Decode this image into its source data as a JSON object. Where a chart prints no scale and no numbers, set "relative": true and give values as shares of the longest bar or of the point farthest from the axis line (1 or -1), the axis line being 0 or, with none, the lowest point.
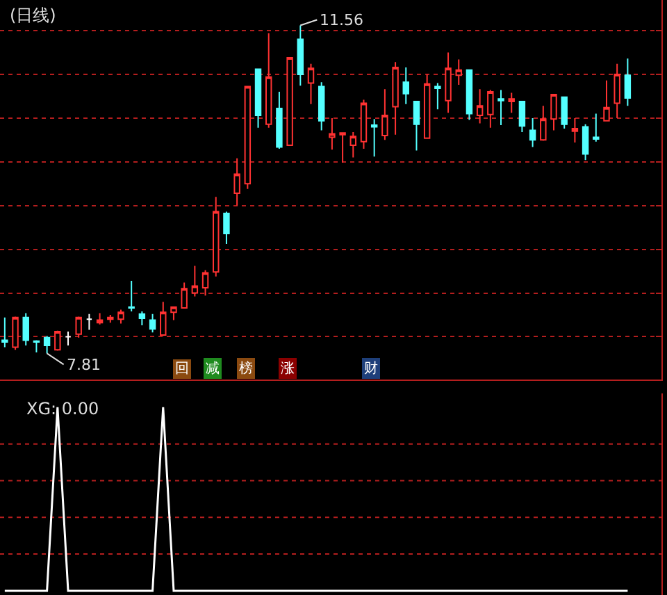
{
  "chart_data": [
    {
      "type": "candlestick",
      "title": "(日线)",
      "categories": [
        null,
        null,
        null,
        null,
        null,
        null,
        null,
        null,
        null,
        null,
        null,
        null,
        null,
        null,
        null,
        null,
        null,
        null,
        null,
        null,
        null,
        null,
        null,
        null,
        null,
        null,
        null,
        null,
        null,
        null,
        null,
        null,
        null,
        null,
        null,
        null,
        null,
        null,
        null,
        null,
        null,
        null,
        null,
        null,
        null,
        null,
        null,
        null,
        null,
        null,
        null,
        null,
        null,
        null,
        null,
        null,
        null,
        null,
        null,
        null
      ],
      "ohlc": [
        [
          7.96,
          8.22,
          7.88,
          7.94
        ],
        [
          7.88,
          8.23,
          7.85,
          8.22
        ],
        [
          8.22,
          8.27,
          7.9,
          7.96
        ],
        [
          7.95,
          7.96,
          7.82,
          7.94
        ],
        [
          7.99,
          8.01,
          7.81,
          7.9
        ],
        [
          7.85,
          8.07,
          7.84,
          8.06
        ],
        [
          8.0,
          8.06,
          7.9,
          8.0
        ],
        [
          8.03,
          8.23,
          7.99,
          8.22
        ],
        [
          8.2,
          8.26,
          8.08,
          8.2
        ],
        [
          8.16,
          8.27,
          8.14,
          8.19
        ],
        [
          8.2,
          8.25,
          8.16,
          8.22
        ],
        [
          8.2,
          8.31,
          8.15,
          8.28
        ],
        [
          8.34,
          8.64,
          8.29,
          8.33
        ],
        [
          8.26,
          8.29,
          8.13,
          8.21
        ],
        [
          8.19,
          8.26,
          8.05,
          8.09
        ],
        [
          8.02,
          8.4,
          8.01,
          8.28
        ],
        [
          8.28,
          8.34,
          8.19,
          8.34
        ],
        [
          8.33,
          8.62,
          8.33,
          8.55
        ],
        [
          8.5,
          8.81,
          8.46,
          8.58
        ],
        [
          8.56,
          8.76,
          8.47,
          8.73
        ],
        [
          8.74,
          9.6,
          8.69,
          9.43
        ],
        [
          9.41,
          9.43,
          9.06,
          9.18
        ],
        [
          9.64,
          10.04,
          9.5,
          9.86
        ],
        [
          9.75,
          10.86,
          9.69,
          10.86
        ],
        [
          11.06,
          11.06,
          10.39,
          10.53
        ],
        [
          10.43,
          11.47,
          10.39,
          10.97
        ],
        [
          10.61,
          10.8,
          10.15,
          10.17
        ],
        [
          10.19,
          11.19,
          10.19,
          11.19
        ],
        [
          11.4,
          11.56,
          10.87,
          11.0
        ],
        [
          10.9,
          11.12,
          10.66,
          11.07
        ],
        [
          10.86,
          10.91,
          10.36,
          10.47
        ],
        [
          10.28,
          10.5,
          10.14,
          10.32
        ],
        [
          10.31,
          10.33,
          9.99,
          10.33
        ],
        [
          10.19,
          10.34,
          10.05,
          10.29
        ],
        [
          10.23,
          10.71,
          10.15,
          10.67
        ],
        [
          10.42,
          10.49,
          10.06,
          10.4
        ],
        [
          10.3,
          10.83,
          10.25,
          10.53
        ],
        [
          10.63,
          11.14,
          10.31,
          11.08
        ],
        [
          10.91,
          11.08,
          10.66,
          10.78
        ],
        [
          10.69,
          10.69,
          10.13,
          10.43
        ],
        [
          10.27,
          11.0,
          10.27,
          10.89
        ],
        [
          10.86,
          10.9,
          10.6,
          10.84
        ],
        [
          10.7,
          11.25,
          10.56,
          11.07
        ],
        [
          10.99,
          11.17,
          10.88,
          11.05
        ],
        [
          11.05,
          11.05,
          10.48,
          10.55
        ],
        [
          10.53,
          10.83,
          10.44,
          10.64
        ],
        [
          10.54,
          10.82,
          10.39,
          10.8
        ],
        [
          10.72,
          10.82,
          10.42,
          10.7
        ],
        [
          10.69,
          10.79,
          10.56,
          10.72
        ],
        [
          10.69,
          10.69,
          10.34,
          10.41
        ],
        [
          10.36,
          10.5,
          10.17,
          10.25
        ],
        [
          10.25,
          10.64,
          10.24,
          10.49
        ],
        [
          10.49,
          10.77,
          10.36,
          10.77
        ],
        [
          10.74,
          10.74,
          10.38,
          10.43
        ],
        [
          10.35,
          10.5,
          10.22,
          10.38
        ],
        [
          10.4,
          10.43,
          10.02,
          10.09
        ],
        [
          10.28,
          10.55,
          10.23,
          10.26
        ],
        [
          10.47,
          10.93,
          10.47,
          10.62
        ],
        [
          10.67,
          11.12,
          10.5,
          11.0
        ],
        [
          10.99,
          11.18,
          10.64,
          10.73
        ]
      ],
      "colors": [
        "#54ffff",
        "#ff3232",
        "#54ffff",
        "#54ffff",
        "#54ffff",
        "#ff3232",
        "#ffffff",
        "#ff3232",
        "#ffffff",
        "#ff3232",
        "#ff3232",
        "#ff3232",
        "#54ffff",
        "#54ffff",
        "#54ffff",
        "#ff3232",
        "#ff3232",
        "#ff3232",
        "#ff3232",
        "#ff3232",
        "#ff3232",
        "#54ffff",
        "#ff3232",
        "#ff3232",
        "#54ffff",
        "#ff3232",
        "#54ffff",
        "#ff3232",
        "#54ffff",
        "#ff3232",
        "#54ffff",
        "#ff3232",
        "#ff3232",
        "#ff3232",
        "#ff3232",
        "#54ffff",
        "#ff3232",
        "#ff3232",
        "#54ffff",
        "#54ffff",
        "#ff3232",
        "#54ffff",
        "#ff3232",
        "#ff3232",
        "#54ffff",
        "#ff3232",
        "#ff3232",
        "#54ffff",
        "#ff3232",
        "#54ffff",
        "#54ffff",
        "#ff3232",
        "#ff3232",
        "#54ffff",
        "#ff3232",
        "#54ffff",
        "#54ffff",
        "#ff3232",
        "#ff3232",
        "#54ffff"
      ],
      "ylim": [
        7.51,
        11.85
      ],
      "yticks": [
        {
          "value": 8.0,
          "label": null
        },
        {
          "value": 8.5,
          "label": null
        },
        {
          "value": 9.0,
          "label": null
        },
        {
          "value": 9.5,
          "label": null
        },
        {
          "value": 10.0,
          "label": null
        },
        {
          "value": 10.5,
          "label": null
        },
        {
          "value": 11.0,
          "label": null
        },
        {
          "value": 11.5,
          "label": null
        }
      ],
      "grid": "y",
      "tick_labels": false,
      "annotations": [
        "11.56",
        "7.81",
        "回",
        "减",
        "榜",
        "涨",
        "财"
      ]
    },
    {
      "type": "line",
      "title": "XG: 0.00",
      "relative": true,
      "tick_labels": false,
      "ref_lines": [
        {
          "axis": "y",
          "value": 0.2,
          "color": "#b41e1e",
          "line_style": "dotted"
        },
        {
          "axis": "y",
          "value": 0.4,
          "color": "#b41e1e",
          "line_style": "dotted"
        },
        {
          "axis": "y",
          "value": 0.6,
          "color": "#b41e1e",
          "line_style": "dotted"
        },
        {
          "axis": "y",
          "value": 0.8,
          "color": "#b41e1e",
          "line_style": "dotted"
        }
      ],
      "categories": [
        null,
        null,
        null,
        null,
        null,
        null,
        null,
        null,
        null,
        null,
        null,
        null,
        null,
        null,
        null,
        null,
        null,
        null,
        null,
        null,
        null,
        null,
        null,
        null,
        null,
        null,
        null,
        null,
        null,
        null,
        null,
        null,
        null,
        null,
        null,
        null,
        null,
        null,
        null,
        null,
        null,
        null,
        null,
        null,
        null,
        null,
        null,
        null,
        null,
        null,
        null,
        null,
        null,
        null,
        null,
        null,
        null,
        null,
        null,
        null
      ],
      "series": [
        {
          "color": "#ffffff",
          "values": [
            0,
            0,
            0,
            0,
            0,
            1,
            0,
            0,
            0,
            0,
            0,
            0,
            0,
            0,
            0,
            1,
            0,
            0,
            0,
            0,
            0,
            0,
            0,
            0,
            0,
            0,
            0,
            0,
            0,
            0,
            0,
            0,
            0,
            0,
            0,
            0,
            0,
            0,
            0,
            0,
            0,
            0,
            0,
            0,
            0,
            0,
            0,
            0,
            0,
            0,
            0,
            0,
            0,
            0,
            0,
            0,
            0,
            0,
            0,
            0
          ]
        }
      ]
    }
  ]
}
